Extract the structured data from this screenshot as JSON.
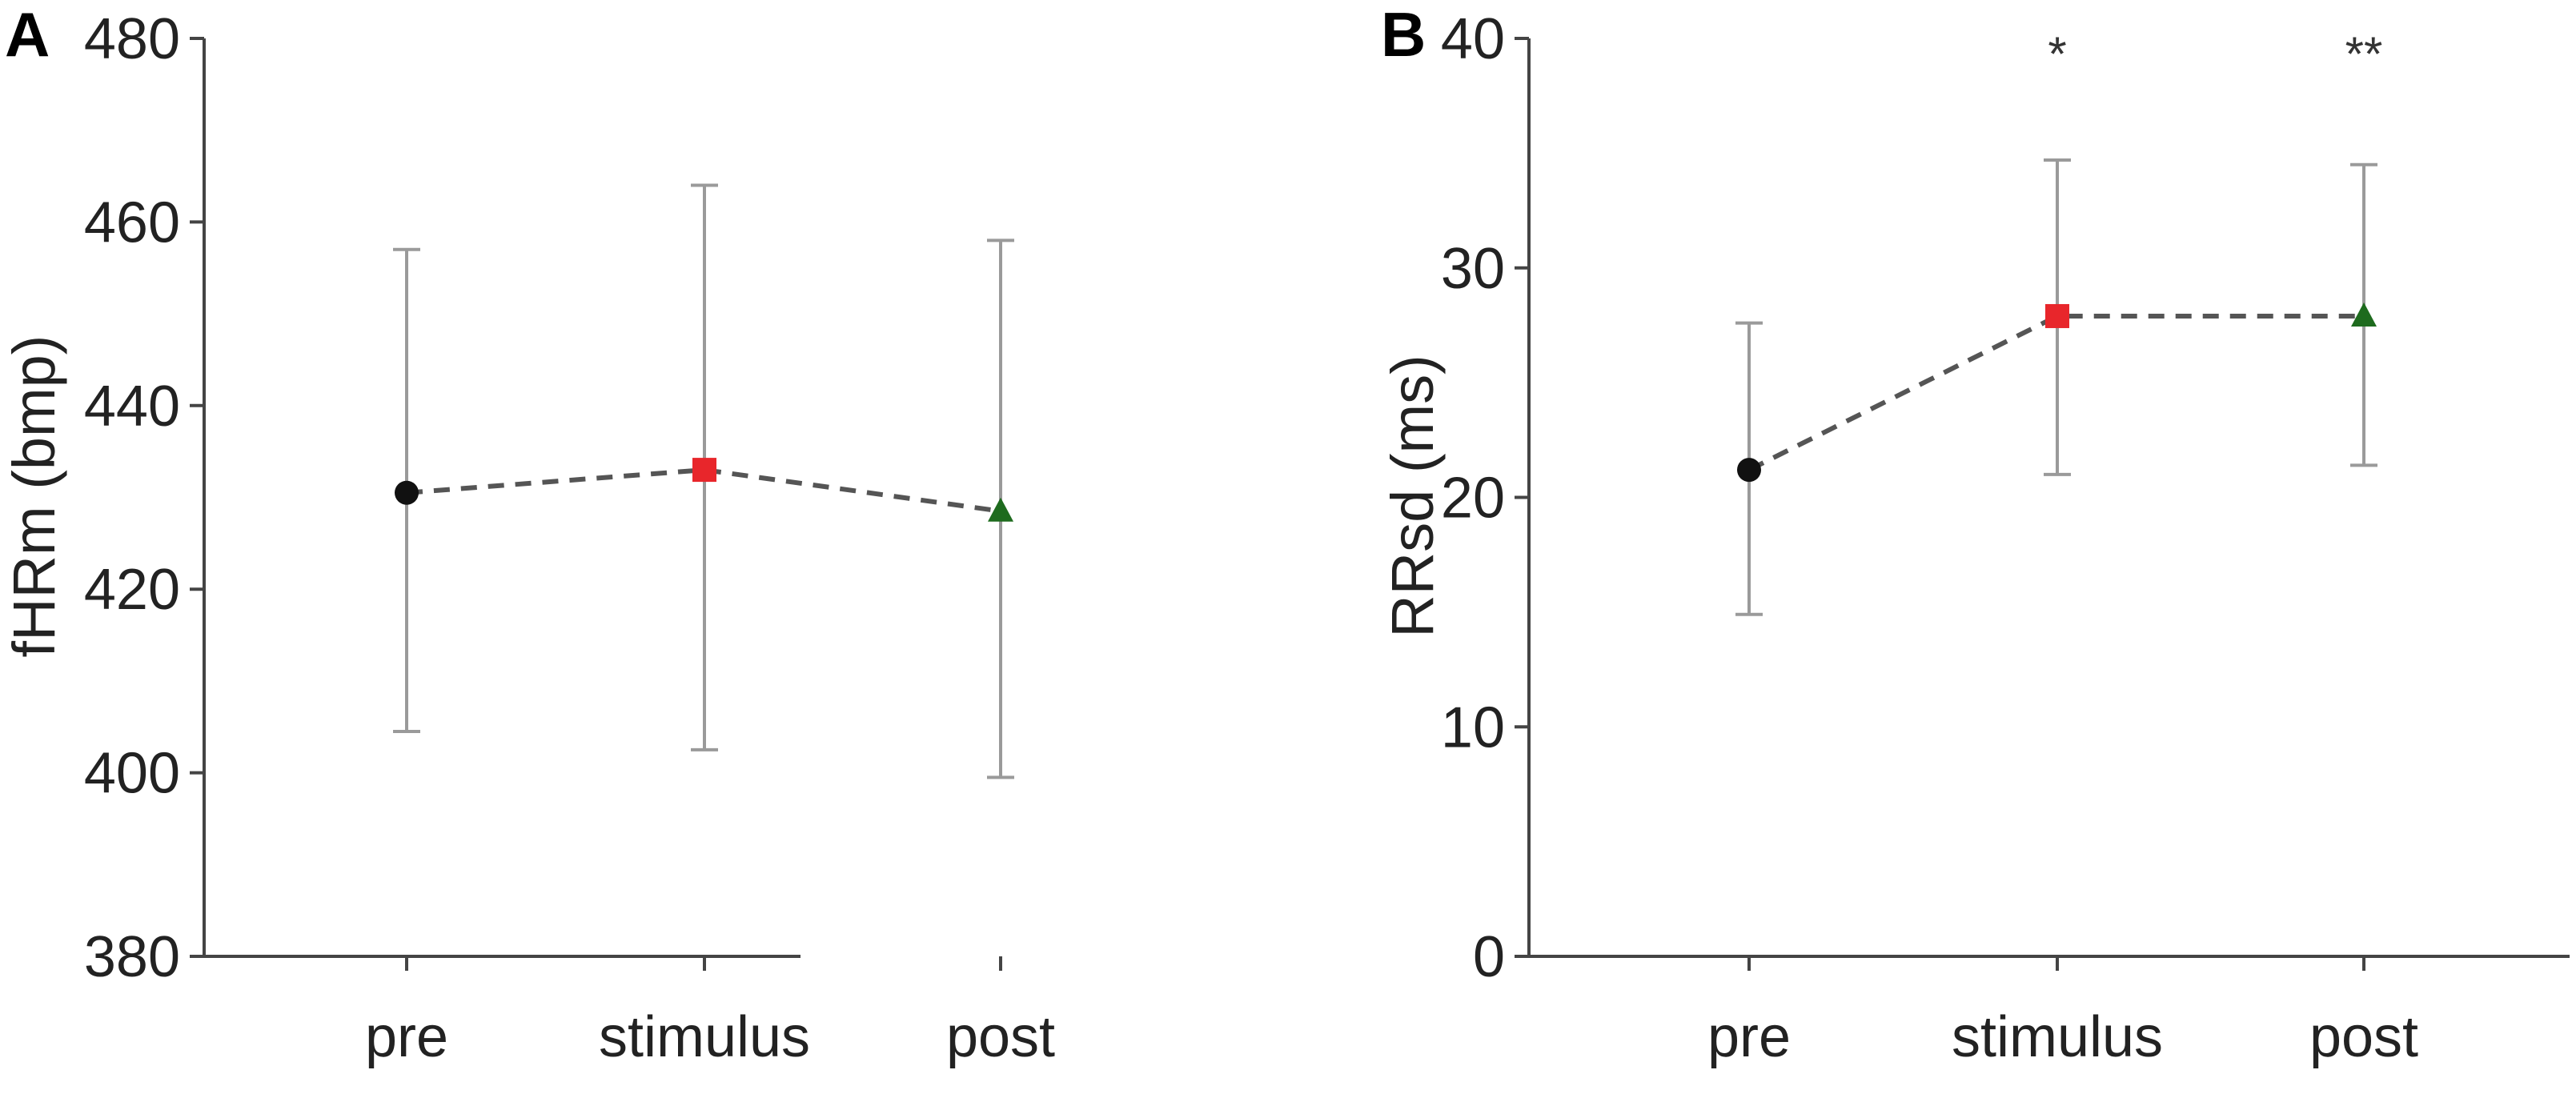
{
  "chart_data": [
    {
      "panel": "A",
      "type": "line",
      "ylabel": "fHRm (bmp)",
      "xlabel": "",
      "categories": [
        "pre",
        "stimulus",
        "post"
      ],
      "ylim": [
        380,
        480
      ],
      "yticks": [
        380,
        400,
        420,
        440,
        460,
        480
      ],
      "series": [
        {
          "values": [
            430.5,
            433.0,
            428.5
          ],
          "error_low": [
            404.5,
            402.5,
            399.5
          ],
          "error_high": [
            457.0,
            464.0,
            458.0
          ],
          "markers": [
            "circle",
            "square",
            "triangle"
          ],
          "marker_colors": [
            "#111111",
            "#e8262b",
            "#1e6b1e"
          ]
        }
      ],
      "annotations": [
        "",
        "",
        ""
      ],
      "grid": false,
      "line_style": "dashed"
    },
    {
      "panel": "B",
      "type": "line",
      "ylabel": "RRsd (ms)",
      "xlabel": "",
      "categories": [
        "pre",
        "stimulus",
        "post"
      ],
      "ylim": [
        0,
        40
      ],
      "yticks": [
        0,
        10,
        20,
        30,
        40
      ],
      "series": [
        {
          "values": [
            21.2,
            27.9,
            27.9
          ],
          "error_low": [
            14.9,
            21.0,
            21.4
          ],
          "error_high": [
            27.6,
            34.7,
            34.5
          ],
          "markers": [
            "circle",
            "square",
            "triangle"
          ],
          "marker_colors": [
            "#111111",
            "#e8262b",
            "#1e6b1e"
          ]
        }
      ],
      "annotations": [
        "",
        "*",
        "**"
      ],
      "grid": false,
      "line_style": "dashed"
    }
  ]
}
